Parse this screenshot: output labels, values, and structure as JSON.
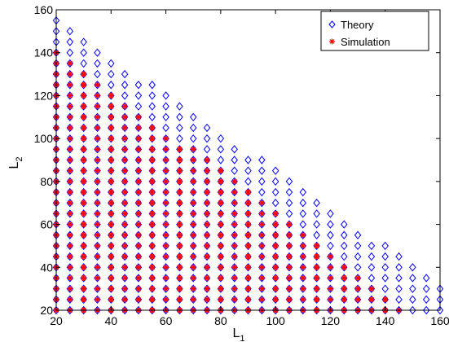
{
  "chart_data": {
    "type": "scatter",
    "x_axis": {
      "label_main": "L",
      "label_sub": "1",
      "lim": [
        20,
        160
      ],
      "ticks": [
        20,
        40,
        60,
        80,
        100,
        120,
        140,
        160
      ]
    },
    "y_axis": {
      "label_main": "L",
      "label_sub": "2",
      "lim": [
        20,
        160
      ],
      "ticks": [
        20,
        40,
        60,
        80,
        100,
        120,
        140,
        160
      ]
    },
    "grid": false,
    "legend": {
      "placement": "top-right"
    },
    "series": [
      {
        "name": "Theory",
        "marker": "diamond-open",
        "color": "#0000ff",
        "columns": [
          {
            "x": 20,
            "y_min": 20,
            "y_max": 155
          },
          {
            "x": 25,
            "y_min": 20,
            "y_max": 150
          },
          {
            "x": 30,
            "y_min": 20,
            "y_max": 145
          },
          {
            "x": 35,
            "y_min": 20,
            "y_max": 140
          },
          {
            "x": 40,
            "y_min": 20,
            "y_max": 135
          },
          {
            "x": 45,
            "y_min": 20,
            "y_max": 130
          },
          {
            "x": 50,
            "y_min": 20,
            "y_max": 125
          },
          {
            "x": 55,
            "y_min": 20,
            "y_max": 125
          },
          {
            "x": 60,
            "y_min": 20,
            "y_max": 120
          },
          {
            "x": 65,
            "y_min": 20,
            "y_max": 115
          },
          {
            "x": 70,
            "y_min": 20,
            "y_max": 110
          },
          {
            "x": 75,
            "y_min": 20,
            "y_max": 105
          },
          {
            "x": 80,
            "y_min": 20,
            "y_max": 100
          },
          {
            "x": 85,
            "y_min": 20,
            "y_max": 95
          },
          {
            "x": 90,
            "y_min": 20,
            "y_max": 90
          },
          {
            "x": 95,
            "y_min": 20,
            "y_max": 90
          },
          {
            "x": 100,
            "y_min": 20,
            "y_max": 85
          },
          {
            "x": 105,
            "y_min": 20,
            "y_max": 80
          },
          {
            "x": 110,
            "y_min": 20,
            "y_max": 75
          },
          {
            "x": 115,
            "y_min": 20,
            "y_max": 70
          },
          {
            "x": 120,
            "y_min": 20,
            "y_max": 65
          },
          {
            "x": 125,
            "y_min": 20,
            "y_max": 60
          },
          {
            "x": 130,
            "y_min": 20,
            "y_max": 55
          },
          {
            "x": 135,
            "y_min": 20,
            "y_max": 50
          },
          {
            "x": 140,
            "y_min": 20,
            "y_max": 50
          },
          {
            "x": 145,
            "y_min": 20,
            "y_max": 45
          },
          {
            "x": 150,
            "y_min": 20,
            "y_max": 40
          },
          {
            "x": 155,
            "y_min": 20,
            "y_max": 35
          },
          {
            "x": 160,
            "y_min": 20,
            "y_max": 30
          }
        ]
      },
      {
        "name": "Simulation",
        "marker": "asterisk",
        "color": "#ff0000",
        "columns": [
          {
            "x": 20,
            "y_min": 20,
            "y_max": 140
          },
          {
            "x": 25,
            "y_min": 20,
            "y_max": 135
          },
          {
            "x": 30,
            "y_min": 20,
            "y_max": 130
          },
          {
            "x": 35,
            "y_min": 20,
            "y_max": 125
          },
          {
            "x": 40,
            "y_min": 20,
            "y_max": 120
          },
          {
            "x": 45,
            "y_min": 20,
            "y_max": 115
          },
          {
            "x": 50,
            "y_min": 20,
            "y_max": 110
          },
          {
            "x": 55,
            "y_min": 20,
            "y_max": 105
          },
          {
            "x": 60,
            "y_min": 20,
            "y_max": 100
          },
          {
            "x": 65,
            "y_min": 20,
            "y_max": 95
          },
          {
            "x": 70,
            "y_min": 20,
            "y_max": 95
          },
          {
            "x": 75,
            "y_min": 20,
            "y_max": 90
          },
          {
            "x": 80,
            "y_min": 20,
            "y_max": 85
          },
          {
            "x": 85,
            "y_min": 20,
            "y_max": 80
          },
          {
            "x": 90,
            "y_min": 20,
            "y_max": 75
          },
          {
            "x": 95,
            "y_min": 20,
            "y_max": 70
          },
          {
            "x": 100,
            "y_min": 20,
            "y_max": 65
          },
          {
            "x": 105,
            "y_min": 20,
            "y_max": 60
          },
          {
            "x": 110,
            "y_min": 20,
            "y_max": 55
          },
          {
            "x": 115,
            "y_min": 20,
            "y_max": 50
          },
          {
            "x": 120,
            "y_min": 20,
            "y_max": 45
          },
          {
            "x": 125,
            "y_min": 20,
            "y_max": 40
          },
          {
            "x": 130,
            "y_min": 20,
            "y_max": 35
          },
          {
            "x": 135,
            "y_min": 20,
            "y_max": 30
          },
          {
            "x": 140,
            "y_min": 20,
            "y_max": 25
          },
          {
            "x": 145,
            "y_min": 20,
            "y_max": 20
          }
        ]
      }
    ]
  }
}
